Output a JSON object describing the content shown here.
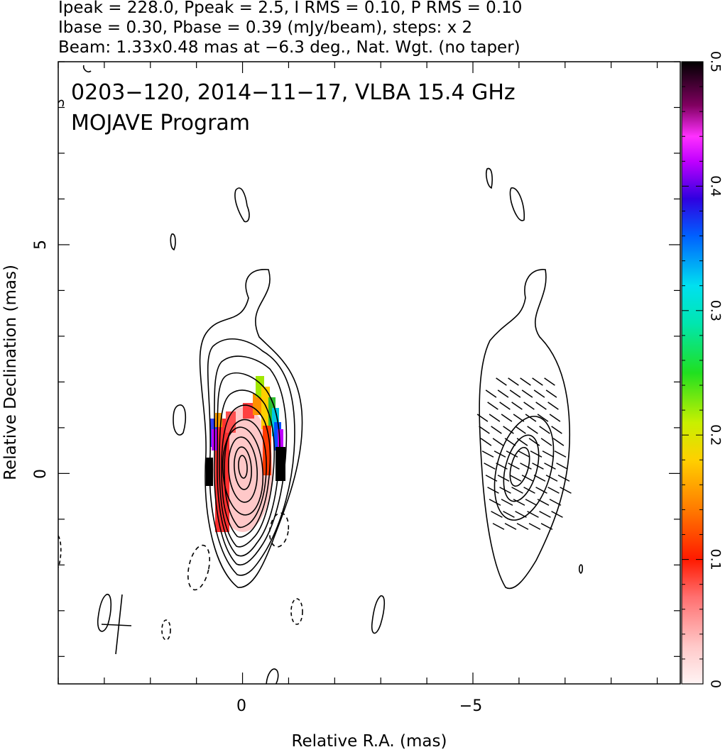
{
  "header": {
    "line1": "Ipeak = 228.0, Ppeak = 2.5, I RMS = 0.10, P RMS = 0.10",
    "line2": "Ibase = 0.30, Pbase = 0.39 (mJy/beam), steps: x 2",
    "line3": "Beam: 1.33x0.48 mas at −6.3 deg., Nat. Wgt. (no taper)"
  },
  "title": {
    "line1": "0203−120, 2014−11−17, VLBA 15.4 GHz",
    "line2": "MOJAVE Program"
  },
  "chart_data": {
    "type": "heatmap",
    "title": "0203−120, 2014−11−17, VLBA 15.4 GHz",
    "subtitle": "MOJAVE Program",
    "xlabel": "Relative R.A. (mas)",
    "ylabel": "Relative Declination (mas)",
    "xlim": [
      4.0,
      -9.5
    ],
    "ylim": [
      -4.6,
      9.0
    ],
    "x_ticks": [
      {
        "value": 0,
        "label": "0"
      },
      {
        "value": -5,
        "label": "−5"
      }
    ],
    "y_ticks": [
      {
        "value": 0,
        "label": "0"
      },
      {
        "value": 5,
        "label": "5"
      }
    ],
    "colorbar": {
      "range": [
        0,
        0.5
      ],
      "ticks": [
        {
          "value": 0,
          "label": "0"
        },
        {
          "value": 0.1,
          "label": "0.1"
        },
        {
          "value": 0.2,
          "label": "0.2"
        },
        {
          "value": 0.3,
          "label": "0.3"
        },
        {
          "value": 0.4,
          "label": "0.4"
        },
        {
          "value": 0.5,
          "label": "0.5"
        }
      ]
    },
    "peak_position": [
      0,
      0
    ],
    "second_panel_offset_x": -6.0,
    "contour_steps": 10
  },
  "colors": {
    "contour": "#000000",
    "background": "#ffffff"
  }
}
